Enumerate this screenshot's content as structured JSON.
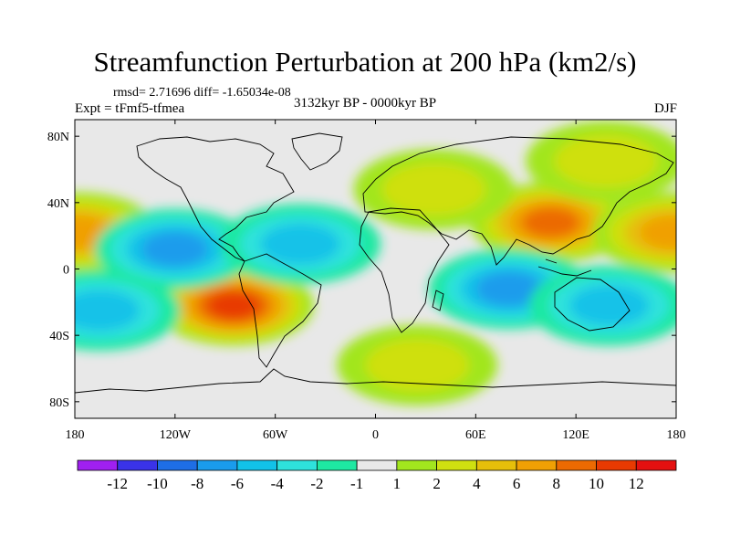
{
  "header": {
    "title": "Streamfunction Perturbation at 200 hPa (km2/s)",
    "stats": "rmsd= 2.71696 diff= -1.65034e-08",
    "expt": "Expt = tFmf5-tfmea",
    "period": "3132kyr BP - 0000kyr BP",
    "season": "DJF"
  },
  "chart_data": {
    "type": "heatmap",
    "title": "Streamfunction Perturbation at 200 hPa (km2/s)",
    "xlabel": "",
    "ylabel": "",
    "xlim": [
      -180,
      180
    ],
    "ylim": [
      -90,
      90
    ],
    "x_ticks": [
      {
        "value": -180,
        "label": "180"
      },
      {
        "value": -120,
        "label": "120W"
      },
      {
        "value": -60,
        "label": "60W"
      },
      {
        "value": 0,
        "label": "0"
      },
      {
        "value": 60,
        "label": "60E"
      },
      {
        "value": 120,
        "label": "120E"
      },
      {
        "value": 180,
        "label": "180"
      }
    ],
    "y_ticks": [
      {
        "value": 80,
        "label": "80N"
      },
      {
        "value": 40,
        "label": "40N"
      },
      {
        "value": 0,
        "label": "0"
      },
      {
        "value": -40,
        "label": "40S"
      },
      {
        "value": -80,
        "label": "80S"
      }
    ],
    "colorbar": {
      "levels": [
        -12,
        -10,
        -8,
        -6,
        -4,
        -2,
        -1,
        1,
        2,
        4,
        6,
        8,
        10,
        12
      ],
      "labels": [
        "-12",
        "-10",
        "-8",
        "-6",
        "-4",
        "-2",
        "-1",
        "1",
        "2",
        "4",
        "6",
        "8",
        "10",
        "12"
      ],
      "colors": [
        "#a020f0",
        "#3a33e8",
        "#1e6ee6",
        "#1a9cec",
        "#12c2e8",
        "#2ee2dc",
        "#1ee8a2",
        "#e8e8e8",
        "#a2e61e",
        "#cfe010",
        "#e6bf0a",
        "#f0a004",
        "#ec6a02",
        "#e83a02",
        "#e41010"
      ]
    },
    "features": [
      {
        "lon": -85,
        "lat": -22,
        "value": 11
      },
      {
        "lon": 105,
        "lat": 28,
        "value": 9
      },
      {
        "lon": -178,
        "lat": 22,
        "value": 7
      },
      {
        "lon": 178,
        "lat": 22,
        "value": 6
      },
      {
        "lon": -120,
        "lat": 12,
        "value": -6
      },
      {
        "lon": -45,
        "lat": 15,
        "value": -5
      },
      {
        "lon": 80,
        "lat": -12,
        "value": -6
      },
      {
        "lon": 140,
        "lat": -22,
        "value": -5
      },
      {
        "lon": -165,
        "lat": -25,
        "value": -4
      },
      {
        "lon": 25,
        "lat": -58,
        "value": 3
      },
      {
        "lon": 138,
        "lat": 65,
        "value": 2
      },
      {
        "lon": 35,
        "lat": 48,
        "value": 2
      }
    ]
  }
}
